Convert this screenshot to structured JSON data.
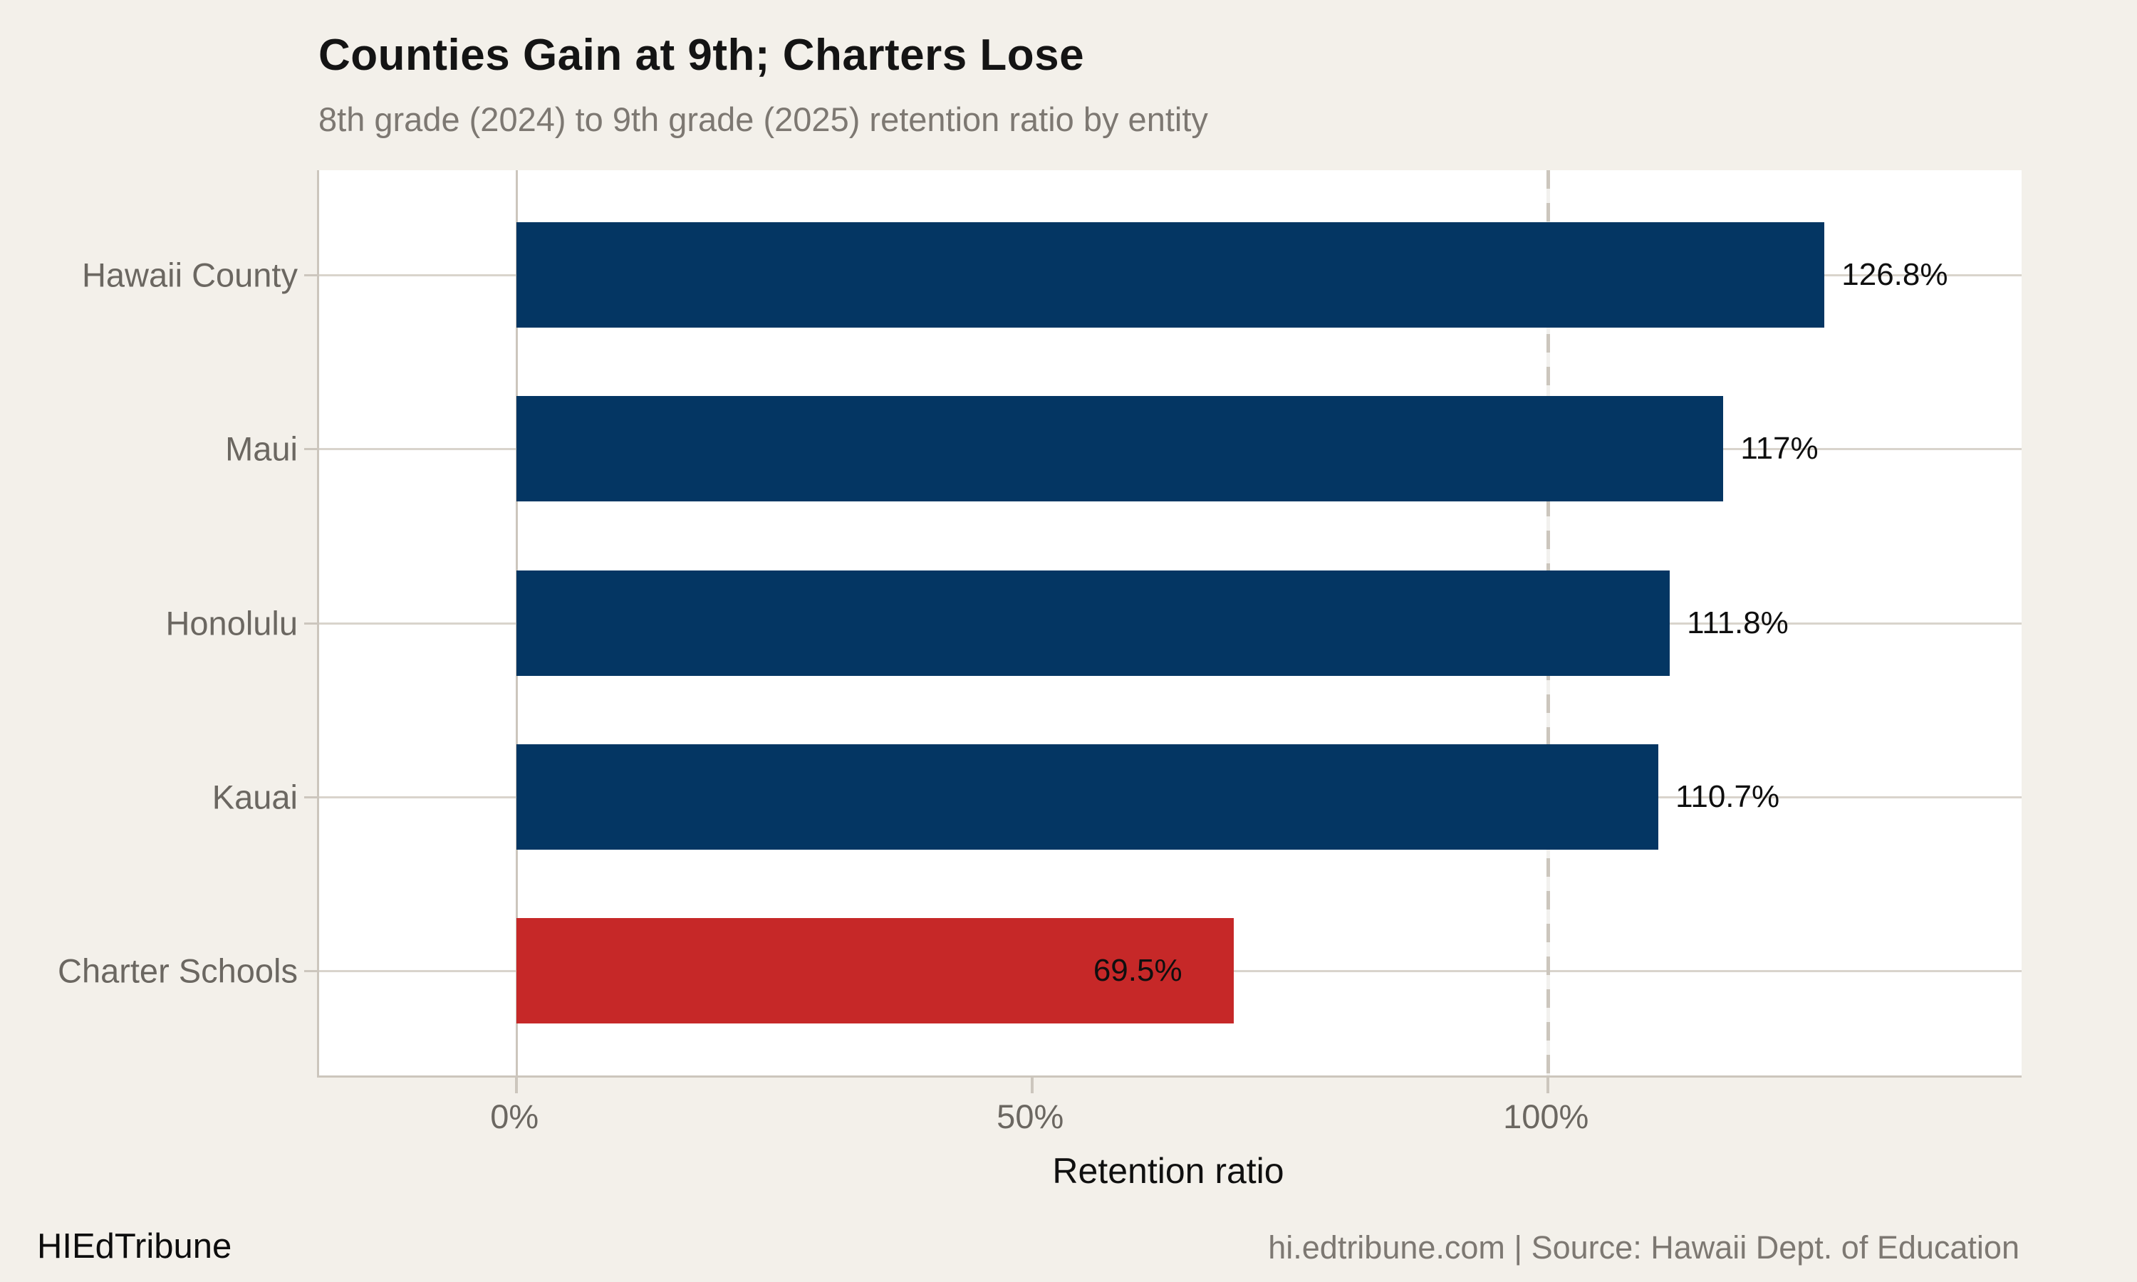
{
  "header": {
    "title": "Counties Gain at 9th; Charters Lose",
    "subtitle": "8th grade (2024) to 9th grade (2025) retention ratio by entity"
  },
  "chart_data": {
    "type": "bar",
    "orientation": "horizontal",
    "title": "Counties Gain at 9th; Charters Lose",
    "subtitle": "8th grade (2024) to 9th grade (2025) retention ratio by entity",
    "categories": [
      "Hawaii County",
      "Maui",
      "Honolulu",
      "Kauai",
      "Charter Schools"
    ],
    "values": [
      126.8,
      117,
      111.8,
      110.7,
      69.5
    ],
    "value_labels": [
      "126.8%",
      "117%",
      "111.8%",
      "110.7%",
      "69.5%"
    ],
    "bar_colors": [
      "#043663",
      "#043663",
      "#043663",
      "#043663",
      "#c62828"
    ],
    "xlabel": "Retention ratio",
    "ylabel": "",
    "x_tick_labels": [
      "0%",
      "50%",
      "100%"
    ],
    "x_tick_values": [
      0,
      50,
      100
    ],
    "xlim": [
      -19,
      146
    ],
    "reference_line": {
      "value": 100,
      "style": "dashed"
    },
    "grid": "horizontal-category-lines",
    "legend": "none",
    "plot_background": "#ffffff"
  },
  "colors": {
    "page_background": "#f3f0ea",
    "county_bar": "#043663",
    "charter_bar": "#c62828",
    "gridline": "#d9d4cc",
    "axis_line": "#ccc6bd",
    "reference_line": "#ccc6bd",
    "title_text": "#141414",
    "subtitle_text": "#7d7872",
    "axis_label_text": "#6b6761",
    "value_label_text": "#0f0f0f"
  },
  "footer": {
    "brand": "HIEdTribune",
    "attribution": "hi.edtribune.com | Source: Hawaii Dept. of Education"
  }
}
